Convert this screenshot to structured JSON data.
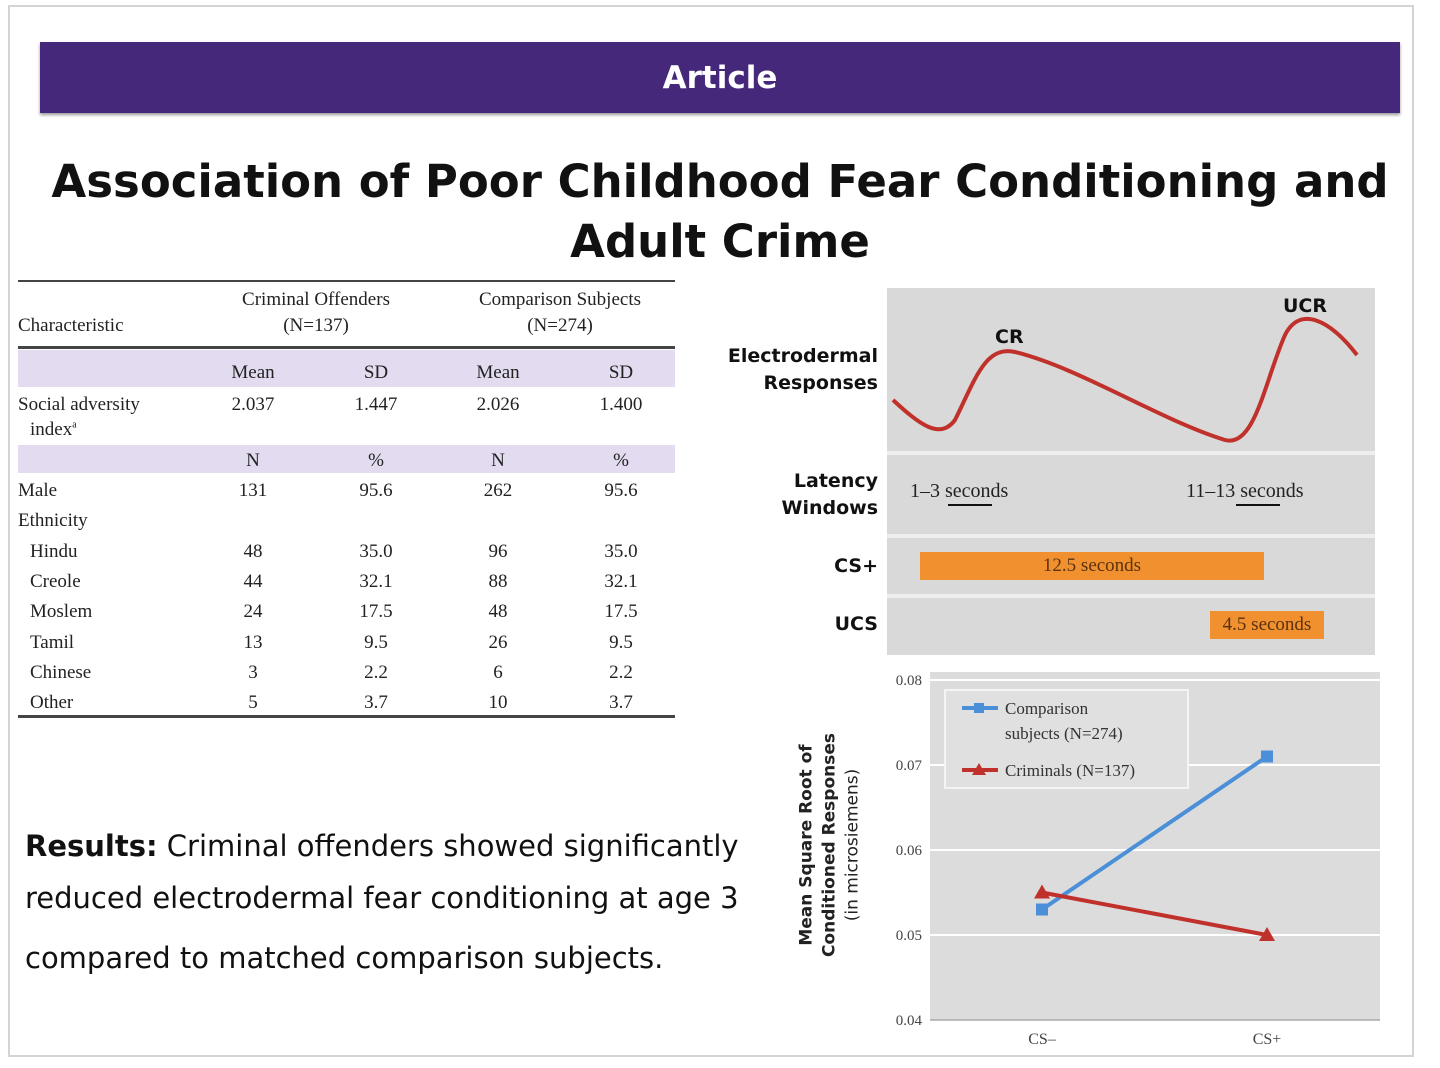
{
  "banner": {
    "label": "Article"
  },
  "title": {
    "line1": "Association of Poor Childhood Fear Conditioning and",
    "line2": "Adult Crime"
  },
  "table": {
    "header": {
      "characteristic": "Characteristic",
      "group1_line1": "Criminal Offenders",
      "group1_line2": "(N=137)",
      "group2_line1": "Comparison Subjects",
      "group2_line2": "(N=274)"
    },
    "subheader1": [
      "Mean",
      "SD",
      "Mean",
      "SD"
    ],
    "social_adversity": {
      "label_line1": "Social adversity",
      "label_line2": "index",
      "footnote": "a",
      "values": [
        "2.037",
        "1.447",
        "2.026",
        "1.400"
      ]
    },
    "subheader2": [
      "N",
      "%",
      "N",
      "%"
    ],
    "rows": [
      {
        "label": "Male",
        "values": [
          "131",
          "95.6",
          "262",
          "95.6"
        ],
        "indent": false
      },
      {
        "label": "Ethnicity",
        "values": [
          "",
          "",
          "",
          ""
        ],
        "indent": false
      },
      {
        "label": "Hindu",
        "values": [
          "48",
          "35.0",
          "96",
          "35.0"
        ],
        "indent": true
      },
      {
        "label": "Creole",
        "values": [
          "44",
          "32.1",
          "88",
          "32.1"
        ],
        "indent": true
      },
      {
        "label": "Moslem",
        "values": [
          "24",
          "17.5",
          "48",
          "17.5"
        ],
        "indent": true
      },
      {
        "label": "Tamil",
        "values": [
          "13",
          "9.5",
          "26",
          "9.5"
        ],
        "indent": true
      },
      {
        "label": "Chinese",
        "values": [
          "3",
          "2.2",
          "6",
          "2.2"
        ],
        "indent": true
      },
      {
        "label": "Other",
        "values": [
          "5",
          "3.7",
          "10",
          "3.7"
        ],
        "indent": true
      }
    ]
  },
  "diagram": {
    "row1_label": "Electrodermal Responses",
    "cr_label": "CR",
    "ucr_label": "UCR",
    "row2_label": "Latency Windows",
    "window1": "1–3 seconds",
    "window2": "11–13 seconds",
    "row3_label": "CS+",
    "cs_bar": "12.5 seconds",
    "row4_label": "UCS",
    "ucs_bar": "4.5 seconds",
    "colors": {
      "curve": "#c0312b",
      "bar": "#f0902e",
      "panel": "#d9d9d9"
    }
  },
  "chart_data": {
    "type": "line",
    "categories": [
      "CS–",
      "CS+"
    ],
    "series": [
      {
        "name": "Comparison subjects (N=274)",
        "values": [
          0.053,
          0.071
        ],
        "color": "#4a8fd8",
        "marker": "square"
      },
      {
        "name": "Criminals (N=137)",
        "values": [
          0.055,
          0.05
        ],
        "color": "#c0312b",
        "marker": "triangle"
      }
    ],
    "ylabel_lines": [
      "Mean Square Root of",
      "Conditioned Responses",
      "(in microsiemens)"
    ],
    "ylim": [
      0.04,
      0.08
    ],
    "yticks": [
      "0.04",
      "0.05",
      "0.06",
      "0.07",
      "0.08"
    ],
    "grid": true,
    "legend": "top-left"
  },
  "results": {
    "bold": "Results:",
    "line1": " Criminal offenders showed significantly",
    "line2": "reduced electrodermal fear conditioning at age 3",
    "line3": "compared to matched comparison subjects."
  }
}
